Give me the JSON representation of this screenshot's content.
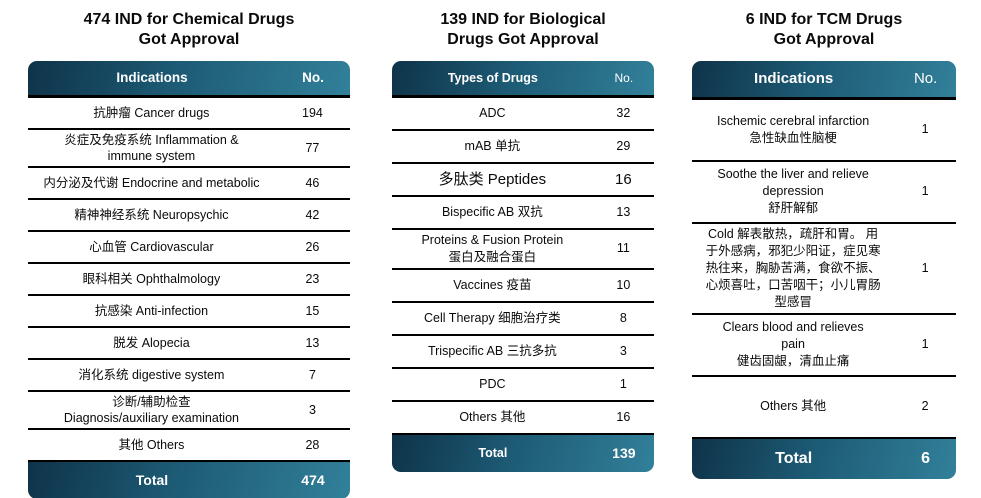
{
  "theme": {
    "header_gradient_start": "#0e3349",
    "header_gradient_end": "#32809a",
    "divider_color": "#000000",
    "header_text_color": "#ffffff",
    "body_text_color": "#0a0a0a",
    "background": "#ffffff"
  },
  "chart_data": [
    {
      "type": "table",
      "title": "474 IND for Chemical Drugs\nGot Approval",
      "columns": [
        "Indications",
        "No."
      ],
      "rows": [
        {
          "label": "抗肿瘤 Cancer drugs",
          "value": 194
        },
        {
          "label": "炎症及免疫系统 Inflammation &\nimmune system",
          "value": 77
        },
        {
          "label": "内分泌及代谢 Endocrine and metabolic",
          "value": 46
        },
        {
          "label": "精神神经系统 Neuropsychic",
          "value": 42
        },
        {
          "label": "心血管 Cardiovascular",
          "value": 26
        },
        {
          "label": "眼科相关 Ophthalmology",
          "value": 23
        },
        {
          "label": "抗感染 Anti-infection",
          "value": 15
        },
        {
          "label": "脱发 Alopecia",
          "value": 13
        },
        {
          "label": "消化系统 digestive system",
          "value": 7
        },
        {
          "label": "诊断/辅助检查\nDiagnosis/auxiliary examination",
          "value": 3
        },
        {
          "label": "其他 Others",
          "value": 28
        }
      ],
      "total_label": "Total",
      "total_value": 474
    },
    {
      "type": "table",
      "title": "139 IND for Biological\nDrugs Got Approval",
      "columns": [
        "Types of Drugs",
        "No."
      ],
      "rows": [
        {
          "label": "ADC",
          "value": 32
        },
        {
          "label": "mAB 单抗",
          "value": 29
        },
        {
          "label": "多肽类 Peptides",
          "value": 16,
          "large": true
        },
        {
          "label": "Bispecific AB 双抗",
          "value": 13
        },
        {
          "label": "Proteins & Fusion Protein\n蛋白及融合蛋白",
          "value": 11
        },
        {
          "label": "Vaccines 疫苗",
          "value": 10
        },
        {
          "label": "Cell Therapy 细胞治疗类",
          "value": 8
        },
        {
          "label": "Trispecific AB 三抗多抗",
          "value": 3
        },
        {
          "label": "PDC",
          "value": 1
        },
        {
          "label": "Others 其他",
          "value": 16
        }
      ],
      "total_label": "Total",
      "total_value": 139
    },
    {
      "type": "table",
      "title": "6 IND for TCM Drugs\nGot Approval",
      "columns": [
        "Indications",
        "No."
      ],
      "rows": [
        {
          "label": "Ischemic cerebral infarction\n急性缺血性脑梗",
          "value": 1
        },
        {
          "label": "Soothe the liver and relieve\ndepression\n舒肝解郁",
          "value": 1
        },
        {
          "label": "Cold 解表散热，疏肝和胃。 用\n于外感病，邪犯少阳证，症见寒\n热往来，胸胁苦满，食欲不振、\n心烦喜吐，口苦咽干；小儿胃肠\n型感冒",
          "value": 1
        },
        {
          "label": "Clears blood and relieves\npain\n健齿固龈，清血止痛",
          "value": 1
        },
        {
          "label": "Others 其他",
          "value": 2
        }
      ],
      "total_label": "Total",
      "total_value": 6
    }
  ]
}
